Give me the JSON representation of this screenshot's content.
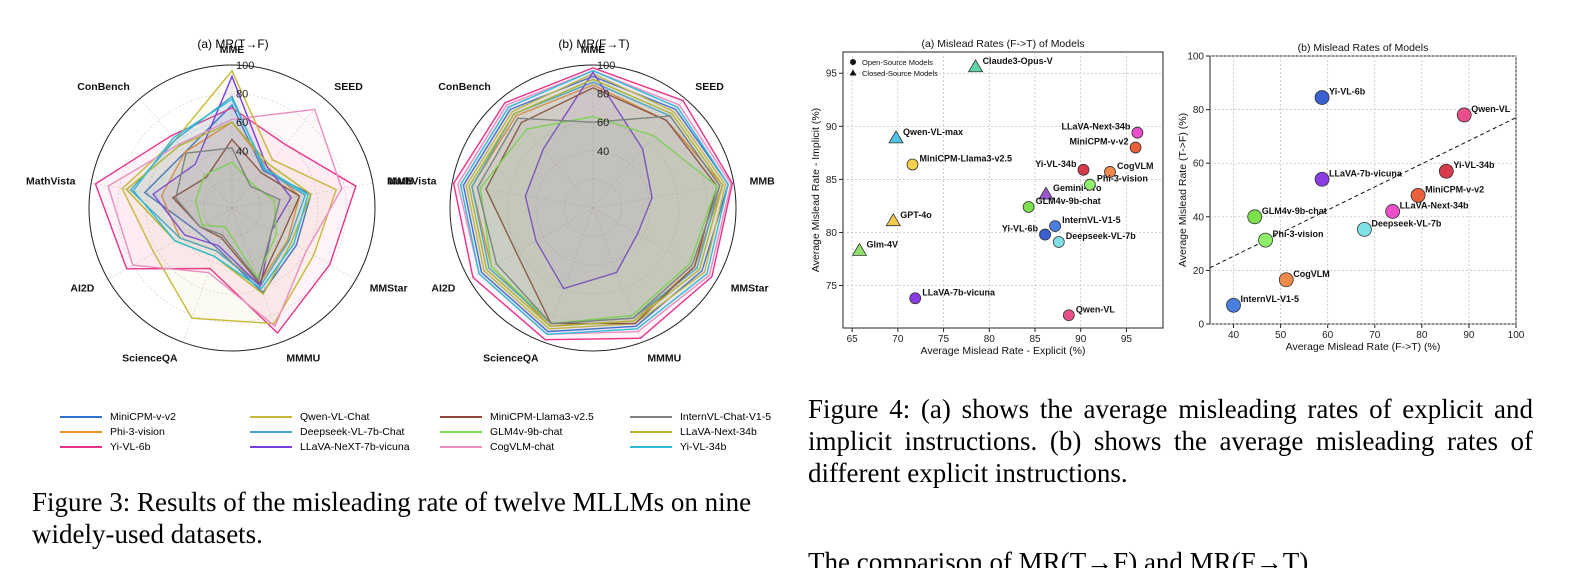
{
  "figure3": {
    "caption": "Figure 3: Results of the misleading rate of twelve MLLMs on nine widely-used datasets.",
    "radar_a_title": "(a) MR(T→F)",
    "radar_b_title": "(b) MR(F→T)",
    "legend": [
      {
        "label": "MiniCPM-v-v2",
        "color": "#2f6fd0"
      },
      {
        "label": "Phi-3-vision",
        "color": "#f28e2b"
      },
      {
        "label": "Yi-VL-6b",
        "color": "#e8338a"
      },
      {
        "label": "Qwen-VL-Chat",
        "color": "#c8b935"
      },
      {
        "label": "Deepseek-VL-7b-Chat",
        "color": "#3fa7c9"
      },
      {
        "label": "LLaVA-NeXT-7b-vicuna",
        "color": "#7a3de0"
      },
      {
        "label": "MiniCPM-Llama3-v2.5",
        "color": "#8b4a3a"
      },
      {
        "label": "GLM4v-9b-chat",
        "color": "#7be04a"
      },
      {
        "label": "CogVLM-chat",
        "color": "#e98fc0"
      },
      {
        "label": "InternVL-Chat-V1-5",
        "color": "#7f7f7f"
      },
      {
        "label": "LLaVA-Next-34b",
        "color": "#b5b52a"
      },
      {
        "label": "Yi-VL-34b",
        "color": "#2fbcd8"
      }
    ]
  },
  "figure4": {
    "caption": "Figure 4: (a) shows the average misleading rates of explicit and implicit instructions. (b) shows the average misleading rates of different explicit instructions.",
    "trailing_text": "The comparison of MR(T→F) and MR(F→T)"
  },
  "chart_data": [
    {
      "type": "radar",
      "title": "(a) MR(T→F)",
      "axes": [
        "MME",
        "SEED",
        "MMB",
        "MMStar",
        "MMMU",
        "ScienceQA",
        "AI2D",
        "MathVista",
        "ConBench"
      ],
      "rlim": [
        0,
        100
      ],
      "ticks": [
        "40",
        "60",
        "80",
        "100"
      ],
      "series": [
        {
          "name": "MiniCPM-v-v2",
          "values": [
            72,
            34,
            56,
            52,
            63,
            30,
            30,
            62,
            51
          ]
        },
        {
          "name": "Phi-3-vision",
          "values": [
            60,
            38,
            48,
            45,
            56,
            32,
            42,
            50,
            51
          ]
        },
        {
          "name": "Yi-VL-6b",
          "values": [
            70,
            58,
            88,
            79,
            93,
            45,
            85,
            97,
            66
          ]
        },
        {
          "name": "Qwen-VL-Chat",
          "values": [
            96,
            44,
            74,
            66,
            86,
            82,
            63,
            78,
            62
          ]
        },
        {
          "name": "Deepseek-VL-7b-Chat",
          "values": [
            78,
            35,
            52,
            46,
            58,
            32,
            42,
            72,
            62
          ]
        },
        {
          "name": "LLaVA-NeXT-7b-vicuna",
          "values": [
            92,
            38,
            42,
            32,
            58,
            28,
            38,
            56,
            40
          ]
        },
        {
          "name": "MiniCPM-Llama3-v2.5",
          "values": [
            48,
            32,
            48,
            40,
            56,
            22,
            26,
            42,
            28
          ]
        },
        {
          "name": "GLM4v-9b-chat",
          "values": [
            32,
            22,
            30,
            36,
            52,
            14,
            24,
            26,
            30
          ]
        },
        {
          "name": "CogVLM-chat",
          "values": [
            62,
            90,
            78,
            60,
            88,
            48,
            80,
            88,
            58
          ]
        },
        {
          "name": "InternVL-Chat-V1-5",
          "values": [
            42,
            20,
            34,
            32,
            54,
            20,
            26,
            40,
            50
          ]
        },
        {
          "name": "LLaVA-Next-34b",
          "values": [
            60,
            40,
            56,
            48,
            64,
            36,
            46,
            75,
            57
          ]
        },
        {
          "name": "Yi-VL-34b",
          "values": [
            76,
            36,
            54,
            50,
            60,
            36,
            46,
            70,
            64
          ]
        }
      ]
    },
    {
      "type": "radar",
      "title": "(b) MR(F→T)",
      "axes": [
        "MME",
        "SEED",
        "MMB",
        "MMStar",
        "MMMU",
        "ScienceQA",
        "AI2D",
        "MathVista",
        "ConBench"
      ],
      "rlim": [
        0,
        100
      ],
      "ticks": [
        "40",
        "60",
        "80",
        "100"
      ],
      "series": [
        {
          "name": "MiniCPM-v-v2",
          "values": [
            92,
            90,
            96,
            88,
            88,
            92,
            90,
            92,
            90
          ]
        },
        {
          "name": "Phi-3-vision",
          "values": [
            86,
            80,
            92,
            82,
            84,
            88,
            82,
            86,
            84
          ]
        },
        {
          "name": "Yi-VL-6b",
          "values": [
            98,
            98,
            99,
            96,
            97,
            98,
            97,
            99,
            96
          ]
        },
        {
          "name": "Qwen-VL-Chat",
          "values": [
            94,
            88,
            94,
            90,
            86,
            90,
            88,
            90,
            88
          ]
        },
        {
          "name": "Deepseek-VL-7b-Chat",
          "values": [
            88,
            84,
            90,
            84,
            82,
            86,
            84,
            86,
            86
          ]
        },
        {
          "name": "LLaVA-NeXT-7b-vicuna",
          "values": [
            95,
            54,
            42,
            36,
            48,
            60,
            46,
            48,
            54
          ]
        },
        {
          "name": "MiniCPM-Llama3-v2.5",
          "values": [
            84,
            80,
            88,
            82,
            86,
            86,
            62,
            76,
            78
          ]
        },
        {
          "name": "GLM4v-9b-chat",
          "values": [
            64,
            66,
            88,
            78,
            80,
            86,
            82,
            80,
            72
          ]
        },
        {
          "name": "CogVLM-chat",
          "values": [
            96,
            94,
            98,
            94,
            92,
            94,
            92,
            96,
            94
          ]
        },
        {
          "name": "InternVL-Chat-V1-5",
          "values": [
            60,
            84,
            90,
            80,
            82,
            86,
            78,
            82,
            82
          ]
        },
        {
          "name": "LLaVA-Next-34b",
          "values": [
            90,
            86,
            92,
            86,
            84,
            88,
            86,
            88,
            86
          ]
        },
        {
          "name": "Yi-VL-34b",
          "values": [
            96,
            92,
            96,
            92,
            90,
            94,
            92,
            94,
            92
          ]
        }
      ]
    },
    {
      "type": "scatter",
      "title": "(a)  Mislead Rates (F->T) of Models",
      "xlabel": "Average Mislead Rate - Explicit (%)",
      "ylabel": "Average Mislead Rate - Implicit (%)",
      "xlim": [
        64,
        99
      ],
      "ylim": [
        71,
        97
      ],
      "xticks": [
        "65",
        "70",
        "75",
        "80",
        "85",
        "90",
        "95"
      ],
      "yticks": [
        "75",
        "80",
        "85",
        "90",
        "95"
      ],
      "grid": true,
      "legend": {
        "position": "top-left",
        "entries": [
          {
            "label": "Open-Source Models",
            "marker": "circle"
          },
          {
            "label": "Closed-Source Models",
            "marker": "triangle"
          }
        ]
      },
      "points": [
        {
          "label": "Claude3-Opus-V",
          "x": 78.5,
          "y": 95.6,
          "marker": "triangle",
          "color": "#5fd6a8"
        },
        {
          "label": "Qwen-VL-max",
          "x": 69.8,
          "y": 88.9,
          "marker": "triangle",
          "color": "#4fc3e6"
        },
        {
          "label": "GPT-4o",
          "x": 69.5,
          "y": 81.1,
          "marker": "triangle",
          "color": "#f2c94c"
        },
        {
          "label": "Glm-4V",
          "x": 65.8,
          "y": 78.3,
          "marker": "triangle",
          "color": "#8ee06a"
        },
        {
          "label": "Gemini-Pro",
          "x": 86.2,
          "y": 83.6,
          "marker": "triangle",
          "color": "#9b59d0"
        },
        {
          "label": "MiniCPM-Llama3-v2.5",
          "x": 71.6,
          "y": 86.4,
          "marker": "circle",
          "color": "#f5d04a"
        },
        {
          "label": "LLaVA-Next-34b",
          "x": 96.2,
          "y": 89.4,
          "marker": "circle",
          "color": "#e84fc8"
        },
        {
          "label": "MiniCPM-v-v2",
          "x": 96.0,
          "y": 88.0,
          "marker": "circle",
          "color": "#e8603c"
        },
        {
          "label": "Yi-VL-34b",
          "x": 90.3,
          "y": 85.9,
          "marker": "circle",
          "color": "#d73a4a"
        },
        {
          "label": "CogVLM",
          "x": 93.2,
          "y": 85.7,
          "marker": "circle",
          "color": "#f08a4b"
        },
        {
          "label": "Phi-3-vision",
          "x": 91.0,
          "y": 84.5,
          "marker": "circle",
          "color": "#8ef06a"
        },
        {
          "label": "GLM4v-9b-chat",
          "x": 84.3,
          "y": 82.4,
          "marker": "circle",
          "color": "#7be04a"
        },
        {
          "label": "InternVL-V1-5",
          "x": 87.2,
          "y": 80.6,
          "marker": "circle",
          "color": "#4a7fe0"
        },
        {
          "label": "Yi-VL-6b",
          "x": 86.1,
          "y": 79.8,
          "marker": "circle",
          "color": "#3a5fd0"
        },
        {
          "label": "Deepseek-VL-7b",
          "x": 87.6,
          "y": 79.1,
          "marker": "circle",
          "color": "#7fe0e6"
        },
        {
          "label": "LLaVA-7b-vicuna",
          "x": 71.9,
          "y": 73.8,
          "marker": "circle",
          "color": "#8a3de0"
        },
        {
          "label": "Qwen-VL",
          "x": 88.7,
          "y": 72.2,
          "marker": "circle",
          "color": "#e84f8a"
        }
      ]
    },
    {
      "type": "scatter",
      "title": "(b)  Mislead Rates of Models",
      "xlabel": "Average Mislead Rate (F->T) (%)",
      "ylabel": "Average Mislead Rate (T->F) (%)",
      "xlim": [
        35,
        100
      ],
      "ylim": [
        0,
        100
      ],
      "xticks": [
        "40",
        "50",
        "60",
        "70",
        "80",
        "90",
        "100"
      ],
      "yticks": [
        "0",
        "20",
        "40",
        "60",
        "80",
        "100"
      ],
      "grid": true,
      "trendline": {
        "style": "dashed",
        "from": [
          35,
          21
        ],
        "to": [
          100,
          77
        ]
      },
      "points": [
        {
          "label": "Yi-VL-6b",
          "x": 58.8,
          "y": 84.5,
          "color": "#3a5fd0"
        },
        {
          "label": "Qwen-VL",
          "x": 89.0,
          "y": 78.0,
          "color": "#e84f8a"
        },
        {
          "label": "Yi-VL-34b",
          "x": 85.2,
          "y": 57.0,
          "color": "#d73a4a"
        },
        {
          "label": "LLaVA-7b-vicuna",
          "x": 58.8,
          "y": 54.0,
          "color": "#8a3de0"
        },
        {
          "label": "MiniCPM-v-v2",
          "x": 79.2,
          "y": 48.0,
          "color": "#e8603c"
        },
        {
          "label": "LLaVA-Next-34b",
          "x": 73.8,
          "y": 42.0,
          "color": "#e84fc8"
        },
        {
          "label": "GLM4v-9b-chat",
          "x": 44.5,
          "y": 40.0,
          "color": "#7be04a"
        },
        {
          "label": "Deepseek-VL-7b",
          "x": 67.8,
          "y": 35.3,
          "color": "#7fe0e6"
        },
        {
          "label": "Phi-3-vision",
          "x": 46.8,
          "y": 31.3,
          "color": "#8ef06a"
        },
        {
          "label": "CogVLM",
          "x": 51.2,
          "y": 16.5,
          "color": "#f08a4b"
        },
        {
          "label": "InternVL-V1-5",
          "x": 40.0,
          "y": 7.0,
          "color": "#4a7fe0"
        }
      ]
    }
  ]
}
